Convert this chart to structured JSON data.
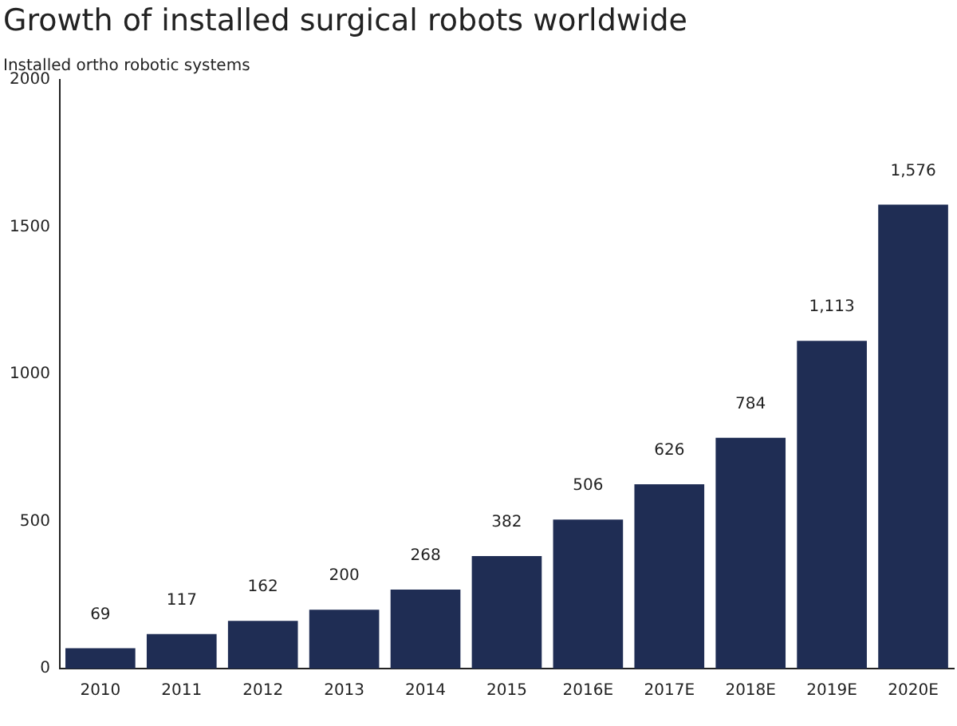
{
  "chart_data": {
    "type": "bar",
    "title": "Growth of installed surgical robots worldwide",
    "ylabel": "Installed ortho robotic systems",
    "categories": [
      "2010",
      "2011",
      "2012",
      "2013",
      "2014",
      "2015",
      "2016E",
      "2017E",
      "2018E",
      "2019E",
      "2020E"
    ],
    "values": [
      69,
      117,
      162,
      200,
      268,
      382,
      506,
      626,
      784,
      1113,
      1576
    ],
    "value_labels": [
      "69",
      "117",
      "162",
      "200",
      "268",
      "382",
      "506",
      "626",
      "784",
      "1,113",
      "1,576"
    ],
    "color": "#1f2d54",
    "ylim": [
      0,
      2000
    ],
    "yticks": [
      0,
      500,
      1000,
      1500,
      2000
    ],
    "grid": false,
    "legend": false
  }
}
